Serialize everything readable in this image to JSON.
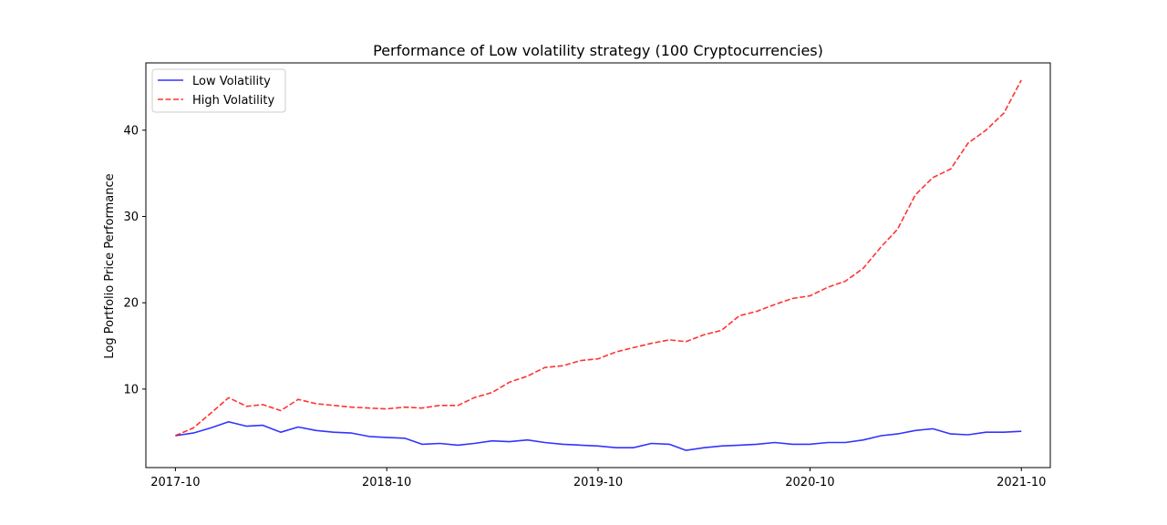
{
  "chart_data": {
    "type": "line",
    "title": "Performance of Low volatility strategy (100 Cryptocurrencies)",
    "xlabel": "",
    "ylabel": "Log Portfolio Price Performance",
    "x_ticks": [
      "2017-10",
      "2018-10",
      "2019-10",
      "2020-10",
      "2021-10"
    ],
    "y_ticks": [
      10,
      20,
      30,
      40
    ],
    "xlim": [
      "2017-08-11",
      "2021-11-20"
    ],
    "ylim": [
      0.9,
      47.8
    ],
    "grid": false,
    "legend_position": "top-left",
    "series": [
      {
        "name": "Low Volatility",
        "color": "#0000ff",
        "linestyle": "solid",
        "points": [
          [
            "2017-10-01",
            4.6
          ],
          [
            "2017-11-01",
            4.9
          ],
          [
            "2017-12-01",
            5.5
          ],
          [
            "2018-01-01",
            6.2
          ],
          [
            "2018-02-01",
            5.7
          ],
          [
            "2018-03-01",
            5.8
          ],
          [
            "2018-04-01",
            5.0
          ],
          [
            "2018-05-01",
            5.6
          ],
          [
            "2018-06-01",
            5.2
          ],
          [
            "2018-07-01",
            5.0
          ],
          [
            "2018-08-01",
            4.9
          ],
          [
            "2018-09-01",
            4.5
          ],
          [
            "2018-10-01",
            4.4
          ],
          [
            "2018-11-01",
            4.3
          ],
          [
            "2018-12-01",
            3.6
          ],
          [
            "2019-01-01",
            3.7
          ],
          [
            "2019-02-01",
            3.5
          ],
          [
            "2019-03-01",
            3.7
          ],
          [
            "2019-04-01",
            4.0
          ],
          [
            "2019-05-01",
            3.9
          ],
          [
            "2019-06-01",
            4.1
          ],
          [
            "2019-07-01",
            3.8
          ],
          [
            "2019-08-01",
            3.6
          ],
          [
            "2019-09-01",
            3.5
          ],
          [
            "2019-10-01",
            3.4
          ],
          [
            "2019-11-01",
            3.2
          ],
          [
            "2019-12-01",
            3.2
          ],
          [
            "2020-01-01",
            3.7
          ],
          [
            "2020-02-01",
            3.6
          ],
          [
            "2020-03-01",
            2.9
          ],
          [
            "2020-04-01",
            3.2
          ],
          [
            "2020-05-01",
            3.4
          ],
          [
            "2020-06-01",
            3.5
          ],
          [
            "2020-07-01",
            3.6
          ],
          [
            "2020-08-01",
            3.8
          ],
          [
            "2020-09-01",
            3.6
          ],
          [
            "2020-10-01",
            3.6
          ],
          [
            "2020-11-01",
            3.8
          ],
          [
            "2020-12-01",
            3.8
          ],
          [
            "2021-01-01",
            4.1
          ],
          [
            "2021-02-01",
            4.6
          ],
          [
            "2021-03-01",
            4.8
          ],
          [
            "2021-04-01",
            5.2
          ],
          [
            "2021-05-01",
            5.4
          ],
          [
            "2021-06-01",
            4.8
          ],
          [
            "2021-07-01",
            4.7
          ],
          [
            "2021-08-01",
            5.0
          ],
          [
            "2021-09-01",
            5.0
          ],
          [
            "2021-10-01",
            5.1
          ]
        ]
      },
      {
        "name": "High Volatility",
        "color": "#ff0000",
        "linestyle": "dashed",
        "points": [
          [
            "2017-10-01",
            4.6
          ],
          [
            "2017-11-01",
            5.5
          ],
          [
            "2017-12-01",
            7.2
          ],
          [
            "2018-01-01",
            9.0
          ],
          [
            "2018-02-01",
            8.0
          ],
          [
            "2018-03-01",
            8.2
          ],
          [
            "2018-04-01",
            7.5
          ],
          [
            "2018-05-01",
            8.8
          ],
          [
            "2018-06-01",
            8.3
          ],
          [
            "2018-07-01",
            8.1
          ],
          [
            "2018-08-01",
            7.9
          ],
          [
            "2018-09-01",
            7.8
          ],
          [
            "2018-10-01",
            7.7
          ],
          [
            "2018-11-01",
            7.9
          ],
          [
            "2018-12-01",
            7.8
          ],
          [
            "2019-01-01",
            8.1
          ],
          [
            "2019-02-01",
            8.1
          ],
          [
            "2019-03-01",
            9.0
          ],
          [
            "2019-04-01",
            9.6
          ],
          [
            "2019-05-01",
            10.8
          ],
          [
            "2019-06-01",
            11.5
          ],
          [
            "2019-07-01",
            12.5
          ],
          [
            "2019-08-01",
            12.7
          ],
          [
            "2019-09-01",
            13.3
          ],
          [
            "2019-10-01",
            13.5
          ],
          [
            "2019-11-01",
            14.3
          ],
          [
            "2019-12-01",
            14.8
          ],
          [
            "2020-01-01",
            15.3
          ],
          [
            "2020-02-01",
            15.7
          ],
          [
            "2020-03-01",
            15.5
          ],
          [
            "2020-04-01",
            16.3
          ],
          [
            "2020-05-01",
            16.8
          ],
          [
            "2020-06-01",
            18.5
          ],
          [
            "2020-07-01",
            19.0
          ],
          [
            "2020-08-01",
            19.8
          ],
          [
            "2020-09-01",
            20.5
          ],
          [
            "2020-10-01",
            20.8
          ],
          [
            "2020-11-01",
            21.8
          ],
          [
            "2020-12-01",
            22.5
          ],
          [
            "2021-01-01",
            24.0
          ],
          [
            "2021-02-01",
            26.5
          ],
          [
            "2021-03-01",
            28.5
          ],
          [
            "2021-04-01",
            32.5
          ],
          [
            "2021-05-01",
            34.5
          ],
          [
            "2021-06-01",
            35.5
          ],
          [
            "2021-07-01",
            38.5
          ],
          [
            "2021-08-01",
            40.0
          ],
          [
            "2021-09-01",
            42.0
          ],
          [
            "2021-10-01",
            45.8
          ]
        ]
      }
    ]
  }
}
